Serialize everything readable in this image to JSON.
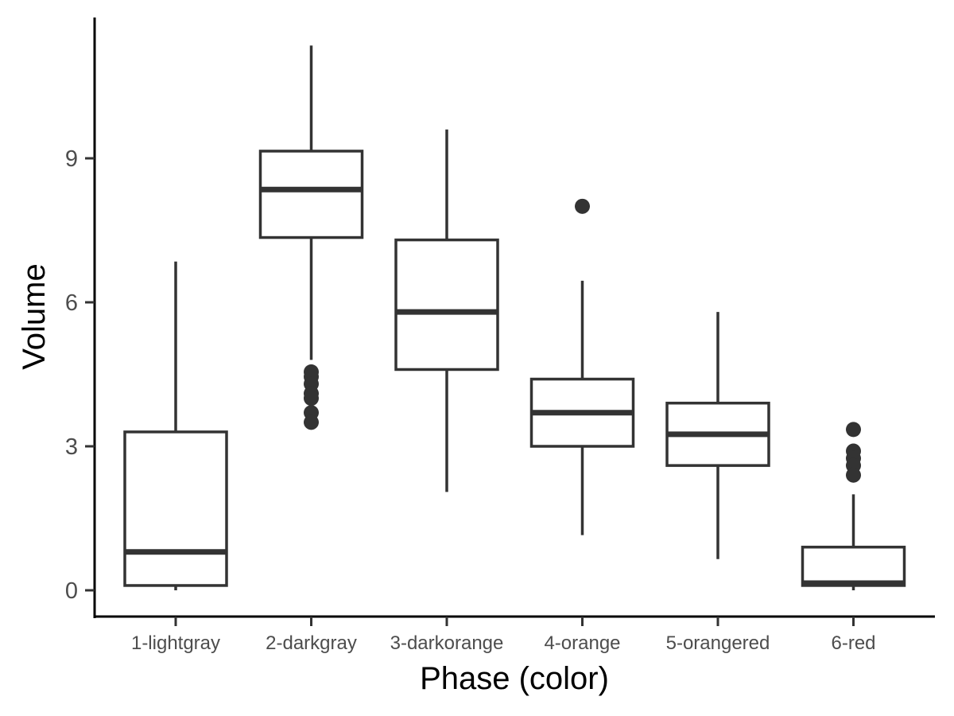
{
  "chart_data": {
    "type": "box",
    "title": "",
    "xlabel": "Phase (color)",
    "ylabel": "Volume",
    "ylim": [
      -0.55,
      11.9
    ],
    "yticks": [
      0,
      3,
      6,
      9
    ],
    "yticks_text": [
      "0",
      "3",
      "6",
      "9"
    ],
    "grid": false,
    "legend": "none",
    "colors": {
      "box_stroke": "#333333",
      "axis": "#000000",
      "tick_text": "#4d4d4d",
      "background": "#ffffff"
    },
    "categories": [
      "1-lightgray",
      "2-darkgray",
      "3-darkorange",
      "4-orange",
      "5-orangered",
      "6-red"
    ],
    "boxes": [
      {
        "category": "1-lightgray",
        "whisker_low": 0.0,
        "q1": 0.1,
        "median": 0.8,
        "q3": 3.3,
        "whisker_high": 6.85,
        "outliers": []
      },
      {
        "category": "2-darkgray",
        "whisker_low": 4.8,
        "q1": 7.35,
        "median": 8.35,
        "q3": 9.15,
        "whisker_high": 11.35,
        "outliers": [
          4.55,
          4.45,
          4.3,
          4.1,
          4.0,
          3.7,
          3.5
        ]
      },
      {
        "category": "3-darkorange",
        "whisker_low": 2.05,
        "q1": 4.6,
        "median": 5.8,
        "q3": 7.3,
        "whisker_high": 9.6,
        "outliers": []
      },
      {
        "category": "4-orange",
        "whisker_low": 1.15,
        "q1": 3.0,
        "median": 3.7,
        "q3": 4.4,
        "whisker_high": 6.45,
        "outliers": [
          8.0
        ]
      },
      {
        "category": "5-orangered",
        "whisker_low": 0.65,
        "q1": 2.6,
        "median": 3.25,
        "q3": 3.9,
        "whisker_high": 5.8,
        "outliers": []
      },
      {
        "category": "6-red",
        "whisker_low": 0.0,
        "q1": 0.1,
        "median": 0.15,
        "q3": 0.9,
        "whisker_high": 2.0,
        "outliers": [
          3.35,
          2.9,
          2.75,
          2.6,
          2.4
        ]
      }
    ]
  }
}
